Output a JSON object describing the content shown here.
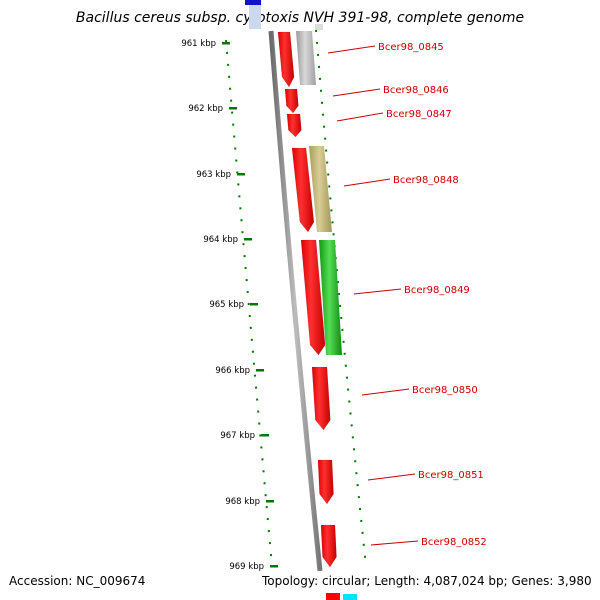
{
  "title": "Bacillus cereus subsp. cytotoxis NVH 391-98, complete genome",
  "accession": "Accession: NC_009674",
  "topology": "Topology: circular; Length: 4,087,024 bp; Genes: 3,980",
  "ticks": [
    "961 kbp",
    "962 kbp",
    "963 kbp",
    "964 kbp",
    "965 kbp",
    "966 kbp",
    "967 kbp",
    "968 kbp",
    "969 kbp"
  ],
  "genes": [
    {
      "label": "Bcer98_0845",
      "color": "#ff0000",
      "overlay_color": "#b4b4b4"
    },
    {
      "label": "Bcer98_0846",
      "color": "#ff0000"
    },
    {
      "label": "Bcer98_0847",
      "color": "#ff0000"
    },
    {
      "label": "Bcer98_0848",
      "color": "#ff0000",
      "overlay_color": "#bdb27a"
    },
    {
      "label": "Bcer98_0849",
      "color": "#ff0000",
      "overlay_color": "#22bb22"
    },
    {
      "label": "Bcer98_0850",
      "color": "#ff0000"
    },
    {
      "label": "Bcer98_0851",
      "color": "#ff0000"
    },
    {
      "label": "Bcer98_0852",
      "color": "#ff0000"
    }
  ],
  "colors": {
    "backbone": "#888888",
    "tick_marks": "#007700",
    "label_text": "#cc0000",
    "leader_line": "#cc0000"
  }
}
